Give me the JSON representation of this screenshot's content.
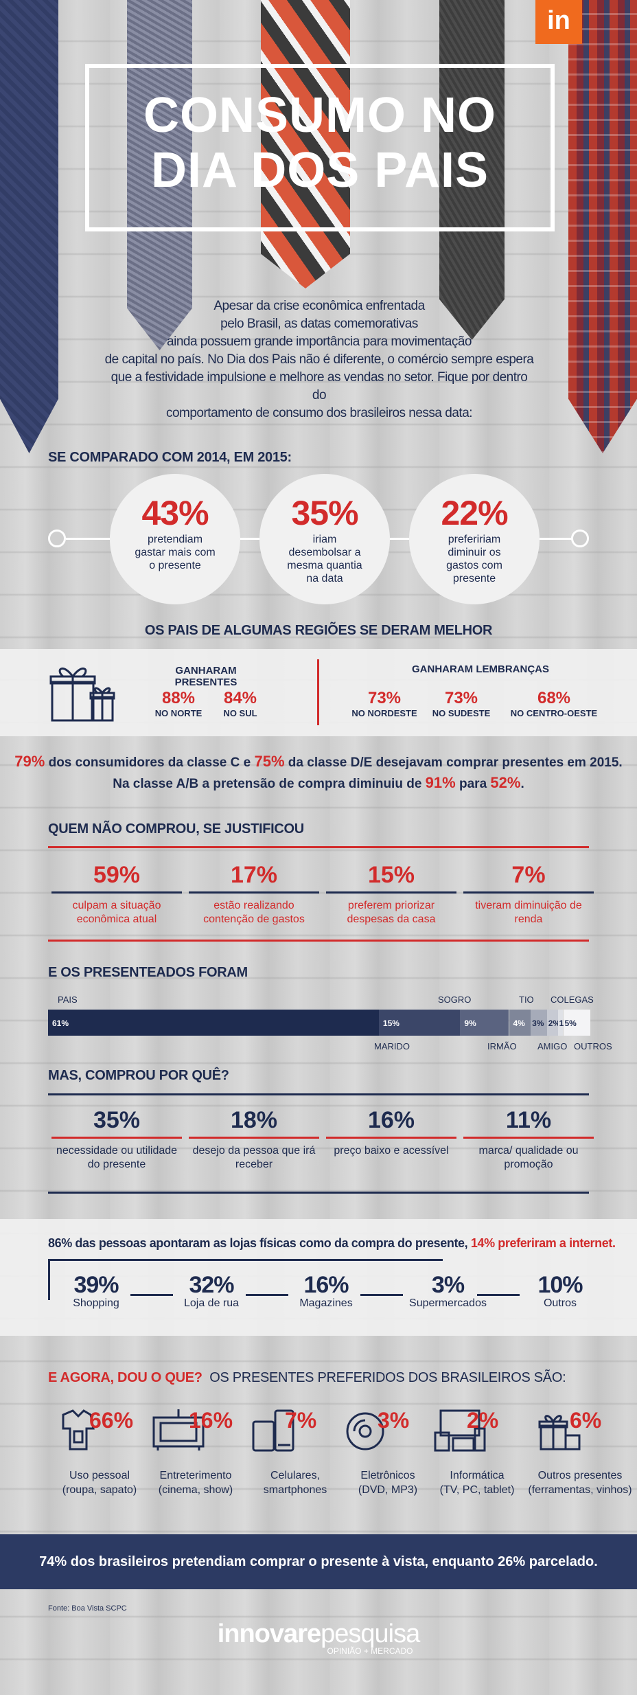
{
  "header": {
    "logo_badge": "in",
    "title_line1": "CONSUMO NO",
    "title_line2": "DIA DOS PAIS",
    "intro_lines": [
      "Apesar da crise econômica enfrentada",
      "pelo Brasil, as datas comemorativas",
      "ainda possuem grande importância para movimentação",
      "de capital no país. No Dia dos Pais não é diferente, o comércio sempre espera",
      "que a festividade impulsione e melhore as vendas no setor. Fique por dentro do",
      "comportamento de consumo dos brasileiros nessa data:"
    ]
  },
  "comparison": {
    "heading": "SE COMPARADO COM 2014, EM 2015:",
    "items": [
      {
        "value": "43%",
        "label": "pretendiam gastar mais com o presente"
      },
      {
        "value": "35%",
        "label": "iriam desembolsar a mesma quantia na data"
      },
      {
        "value": "22%",
        "label": "prefeririam diminuir os gastos com presente"
      }
    ]
  },
  "regions": {
    "heading": "OS PAIS DE ALGUMAS REGIÕES SE DERAM MELHOR",
    "presents_title": "GANHARAM PRESENTES",
    "presents": [
      {
        "value": "88%",
        "label": "NO NORTE"
      },
      {
        "value": "84%",
        "label": "NO SUL"
      }
    ],
    "souvenirs_title": "GANHARAM LEMBRANÇAS",
    "souvenirs": [
      {
        "value": "73%",
        "label": "NO NORDESTE"
      },
      {
        "value": "73%",
        "label": "NO SUDESTE"
      },
      {
        "value": "68%",
        "label": "NO CENTRO-OESTE"
      }
    ]
  },
  "classes": {
    "line1": {
      "a": "79%",
      "b": " dos consumidores da classe C e ",
      "c": "75%",
      "d": " da classe D/E desejavam comprar presentes em 2015."
    },
    "line2": {
      "a": "Na classe A/B a pretensão de compra diminuiu de ",
      "b": "91%",
      "c": " para ",
      "d": "52%",
      "e": "."
    }
  },
  "justify": {
    "heading": "QUEM NÃO COMPROU, SE JUSTIFICOU",
    "items": [
      {
        "value": "59%",
        "label": "culpam a situação econômica atual"
      },
      {
        "value": "17%",
        "label": "estão realizando contenção de gastos"
      },
      {
        "value": "15%",
        "label": "preferem priorizar despesas da casa"
      },
      {
        "value": "7%",
        "label": "tiveram diminuição de renda"
      }
    ]
  },
  "recipients": {
    "heading": "E OS PRESENTEADOS FORAM",
    "segments": [
      {
        "label": "PAIS",
        "value": "61%",
        "color": "#1e2b4f",
        "share": 61
      },
      {
        "label": "MARIDO",
        "value": "15%",
        "color": "#3b4668",
        "share": 15
      },
      {
        "label": "SOGRO",
        "value": "9%",
        "color": "#5a6380",
        "share": 9
      },
      {
        "label": "IRMÃO",
        "value": "4%",
        "color": "#7f8699",
        "share": 4
      },
      {
        "label": "TIO",
        "value": "3%",
        "color": "#a6abb9",
        "share": 3
      },
      {
        "label": "AMIGO",
        "value": "2%",
        "color": "#c7cad3",
        "share": 2
      },
      {
        "label": "COLEGAS",
        "value": "1%",
        "color": "#dfe1e6",
        "share": 1
      },
      {
        "label": "OUTROS",
        "value": "5%",
        "color": "#f4f4f6",
        "share": 5
      }
    ]
  },
  "why": {
    "heading": "MAS, COMPROU POR QUÊ?",
    "items": [
      {
        "value": "35%",
        "label": "necessidade ou utilidade do presente"
      },
      {
        "value": "18%",
        "label": "desejo da pessoa que irá receber"
      },
      {
        "value": "16%",
        "label": "preço baixo e acessível"
      },
      {
        "value": "11%",
        "label": "marca/ qualidade ou promoção"
      }
    ]
  },
  "stores": {
    "lead": "86% das pessoas apontaram as lojas físicas como da compra do presente, ",
    "lead_red": "14% preferiram a internet.",
    "items": [
      {
        "value": "39%",
        "label": "Shopping"
      },
      {
        "value": "32%",
        "label": "Loja de rua"
      },
      {
        "value": "16%",
        "label": "Magazines"
      },
      {
        "value": "3%",
        "label": "Supermercados"
      },
      {
        "value": "10%",
        "label": "Outros"
      }
    ]
  },
  "gifts": {
    "heading_red": "E AGORA, DOU O QUE?",
    "heading": "OS PRESENTES PREFERIDOS DOS BRASILEIROS SÃO:",
    "items": [
      {
        "value": "66%",
        "label1": "Uso pessoal",
        "label2": "(roupa, sapato)",
        "icon": "shirt-icon"
      },
      {
        "value": "16%",
        "label1": "Entreterimento",
        "label2": "(cinema, show)",
        "icon": "tv-icon"
      },
      {
        "value": "7%",
        "label1": "Celulares,",
        "label2": "smartphones",
        "icon": "phone-icon"
      },
      {
        "value": "3%",
        "label1": "Eletrônicos",
        "label2": "(DVD, MP3)",
        "icon": "disc-icon"
      },
      {
        "value": "2%",
        "label1": "Informática",
        "label2": "(TV, PC, tablet)",
        "icon": "computer-icon"
      },
      {
        "value": "6%",
        "label1": "Outros presentes",
        "label2": "(ferramentas, vinhos)",
        "icon": "gift-icon"
      }
    ]
  },
  "footer": {
    "payment": "74% dos brasileiros pretendiam comprar o presente à vista, enquanto 26% parcelado.",
    "source": "Fonte: Boa Vista SCPC",
    "brand_bold": "innovare",
    "brand_light": "pesquisa",
    "brand_tagline": "OPINIÃO + MERCADO"
  }
}
